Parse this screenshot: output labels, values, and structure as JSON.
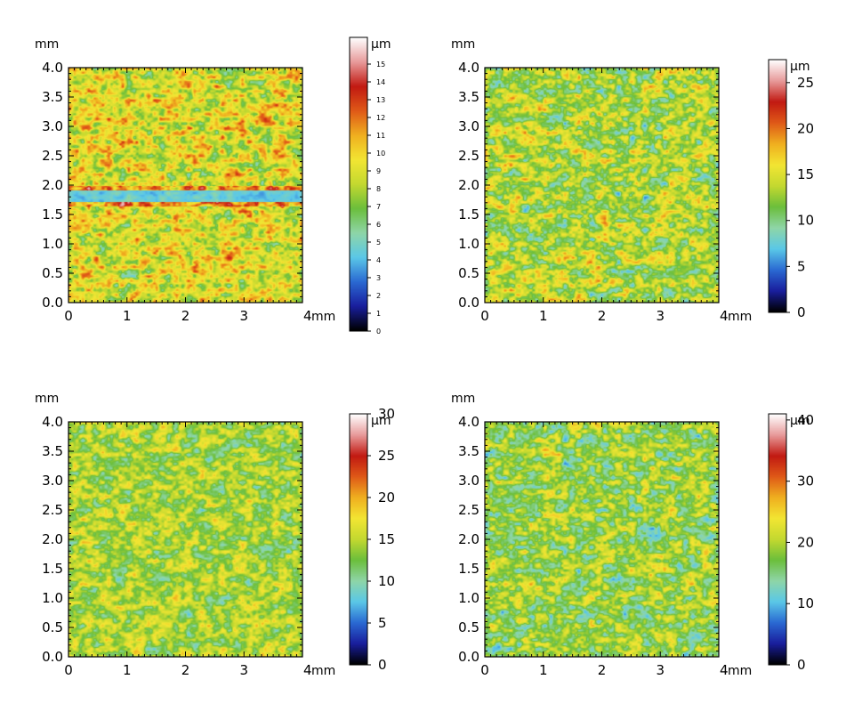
{
  "panels": [
    {
      "axis_unit": "mm",
      "x_ticks": [
        "0",
        "1",
        "2",
        "3",
        "4"
      ],
      "y_ticks": [
        "0.0",
        "0.5",
        "1.0",
        "1.5",
        "2.0",
        "2.5",
        "3.0",
        "3.5",
        "4.0"
      ],
      "colorbar_unit": "µm",
      "colorbar_ticks": [
        "0",
        "1",
        "2",
        "3",
        "4",
        "5",
        "6",
        "7",
        "8",
        "9",
        "10",
        "11",
        "12",
        "13",
        "14",
        "15"
      ],
      "colorbar_max": 16.5,
      "texture_mean": 9.0,
      "texture_sd": 2.2,
      "band": true
    },
    {
      "axis_unit": "mm",
      "x_ticks": [
        "0",
        "1",
        "2",
        "3",
        "4"
      ],
      "y_ticks": [
        "0.0",
        "0.5",
        "1.0",
        "1.5",
        "2.0",
        "2.5",
        "3.0",
        "3.5",
        "4.0"
      ],
      "colorbar_unit": "µm",
      "colorbar_ticks": [
        "0",
        "5",
        "10",
        "15",
        "20",
        "25"
      ],
      "colorbar_max": 27.5,
      "texture_mean": 13.0,
      "texture_sd": 3.6,
      "band": false
    },
    {
      "axis_unit": "mm",
      "x_ticks": [
        "0",
        "1",
        "2",
        "3",
        "4"
      ],
      "y_ticks": [
        "0.0",
        "0.5",
        "1.0",
        "1.5",
        "2.0",
        "2.5",
        "3.0",
        "3.5",
        "4.0"
      ],
      "colorbar_unit": "µm",
      "colorbar_ticks": [
        "0",
        "5",
        "10",
        "15",
        "20",
        "25",
        "30"
      ],
      "colorbar_max": 30,
      "texture_mean": 14.0,
      "texture_sd": 3.2,
      "band": false
    },
    {
      "axis_unit": "mm",
      "x_ticks": [
        "0",
        "1",
        "2",
        "3",
        "4"
      ],
      "y_ticks": [
        "0.0",
        "0.5",
        "1.0",
        "1.5",
        "2.0",
        "2.5",
        "3.0",
        "3.5",
        "4.0"
      ],
      "colorbar_unit": "µm",
      "colorbar_ticks": [
        "0",
        "10",
        "20",
        "30",
        "40"
      ],
      "colorbar_max": 41,
      "texture_mean": 18.0,
      "texture_sd": 5.0,
      "band": false
    }
  ],
  "colormap": [
    "#000000",
    "#1a1f9e",
    "#2b6ad3",
    "#5bc8e8",
    "#8fd6a8",
    "#6cbf3c",
    "#c4d930",
    "#f3e633",
    "#f0b020",
    "#e05a18",
    "#c21a12",
    "#e89a9a",
    "#ffffff"
  ]
}
